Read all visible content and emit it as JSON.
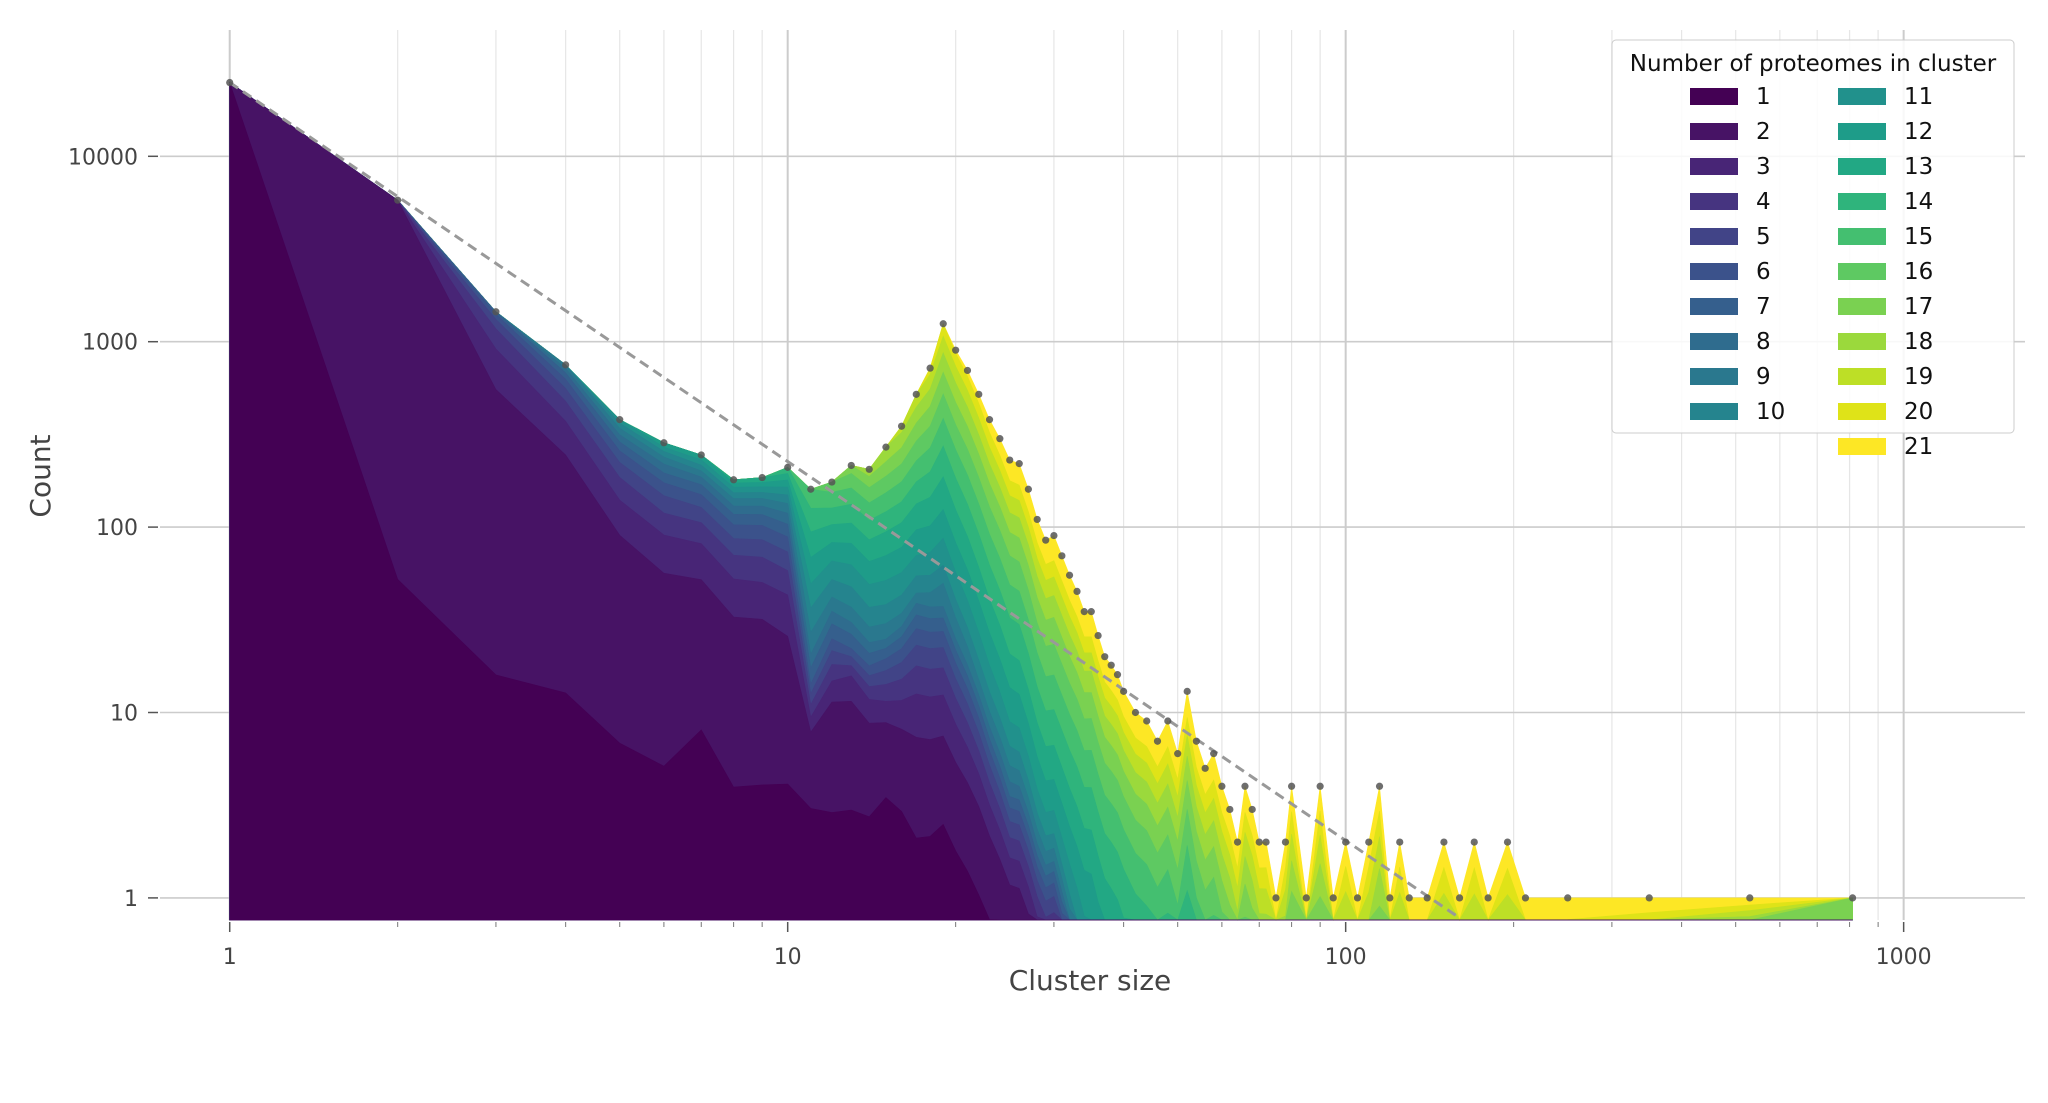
{
  "chart_data": {
    "type": "area",
    "xscale": "log",
    "yscale": "log",
    "xlabel": "Cluster size",
    "ylabel": "Count",
    "xlim": [
      0.75,
      1650
    ],
    "ylim": [
      0.76,
      48000
    ],
    "x_ticks": [
      1,
      10,
      100,
      1000
    ],
    "x_tick_labels": [
      "1",
      "10",
      "100",
      "1000"
    ],
    "y_ticks": [
      1,
      10,
      100,
      1000,
      10000
    ],
    "y_tick_labels": [
      "1",
      "10",
      "100",
      "1000",
      "10000"
    ],
    "grid": true,
    "legend": {
      "title": "Number of proteomes in cluster",
      "position": "top-right",
      "columns": 2
    },
    "series": [
      {
        "name": "1",
        "color": "#440154"
      },
      {
        "name": "2",
        "color": "#471365"
      },
      {
        "name": "3",
        "color": "#482576"
      },
      {
        "name": "4",
        "color": "#463480"
      },
      {
        "name": "5",
        "color": "#414487"
      },
      {
        "name": "6",
        "color": "#3b528b"
      },
      {
        "name": "7",
        "color": "#355f8d"
      },
      {
        "name": "8",
        "color": "#2f6c8e"
      },
      {
        "name": "9",
        "color": "#2a788e"
      },
      {
        "name": "10",
        "color": "#25848e"
      },
      {
        "name": "11",
        "color": "#21918c"
      },
      {
        "name": "12",
        "color": "#1e9c89"
      },
      {
        "name": "13",
        "color": "#22a884"
      },
      {
        "name": "14",
        "color": "#2fb47c"
      },
      {
        "name": "15",
        "color": "#44bf70"
      },
      {
        "name": "16",
        "color": "#5ec962"
      },
      {
        "name": "17",
        "color": "#7ad151"
      },
      {
        "name": "18",
        "color": "#9bd93c"
      },
      {
        "name": "19",
        "color": "#bddf26"
      },
      {
        "name": "20",
        "color": "#dfe318"
      },
      {
        "name": "21",
        "color": "#fde725"
      }
    ],
    "totals": {
      "x": [
        1,
        2,
        3,
        4,
        5,
        6,
        7,
        8,
        9,
        10,
        11,
        12,
        13,
        14,
        15,
        16,
        17,
        18,
        19,
        20,
        21,
        22,
        23,
        24,
        25,
        26,
        27,
        28,
        29,
        30,
        31,
        32,
        33,
        34,
        35,
        36,
        37,
        38,
        39,
        40,
        42,
        44,
        46,
        48,
        50,
        52,
        54,
        56,
        58,
        60,
        62,
        64,
        66,
        68,
        70,
        72,
        75,
        78,
        80,
        85,
        90,
        95,
        100,
        105,
        110,
        115,
        120,
        125,
        130,
        140,
        150,
        160,
        170,
        180,
        195,
        210,
        250,
        350,
        530,
        810
      ],
      "y": [
        25000,
        5800,
        1450,
        750,
        380,
        285,
        245,
        180,
        185,
        210,
        160,
        175,
        215,
        205,
        270,
        350,
        520,
        720,
        1250,
        900,
        700,
        520,
        380,
        300,
        230,
        220,
        160,
        110,
        85,
        90,
        70,
        55,
        45,
        35,
        35,
        26,
        20,
        18,
        16,
        13,
        10,
        9,
        7,
        9,
        6,
        13,
        7,
        5,
        6,
        4,
        3,
        2,
        4,
        3,
        2,
        2,
        1,
        2,
        4,
        1,
        4,
        1,
        2,
        1,
        2,
        4,
        1,
        2,
        1,
        1,
        2,
        1,
        2,
        1,
        2,
        1,
        1,
        1,
        1,
        1
      ]
    },
    "fit_line": {
      "style": "dashed",
      "x": [
        1,
        160
      ],
      "y": [
        25000,
        0.78
      ]
    },
    "stack_profile": {
      "x": [
        1,
        2,
        3,
        4,
        5,
        6,
        7,
        8,
        9,
        10,
        11,
        12,
        13,
        15,
        17,
        19,
        22,
        25,
        30,
        40,
        60,
        100,
        200,
        810
      ],
      "fractions": [
        [
          1.0,
          0,
          0,
          0,
          0,
          0,
          0,
          0,
          0,
          0,
          0,
          0,
          0,
          0,
          0,
          0,
          0,
          0,
          0,
          0,
          0
        ],
        [
          0.009,
          0.991,
          0,
          0,
          0,
          0,
          0,
          0,
          0,
          0,
          0,
          0,
          0,
          0,
          0,
          0,
          0,
          0,
          0,
          0,
          0
        ],
        [
          0.011,
          0.37,
          0.25,
          0.18,
          0.1,
          0.06,
          0.029,
          0,
          0,
          0,
          0,
          0,
          0,
          0,
          0,
          0,
          0,
          0,
          0,
          0,
          0
        ],
        [
          0.017,
          0.31,
          0.17,
          0.14,
          0.11,
          0.09,
          0.07,
          0.05,
          0.043,
          0,
          0,
          0,
          0,
          0,
          0,
          0,
          0,
          0,
          0,
          0,
          0
        ],
        [
          0.018,
          0.22,
          0.13,
          0.12,
          0.1,
          0.09,
          0.08,
          0.07,
          0.07,
          0.06,
          0.042,
          0,
          0,
          0,
          0,
          0,
          0,
          0,
          0,
          0,
          0
        ],
        [
          0.018,
          0.18,
          0.12,
          0.1,
          0.1,
          0.09,
          0.08,
          0.08,
          0.07,
          0.06,
          0.05,
          0.052,
          0,
          0,
          0,
          0,
          0,
          0,
          0,
          0,
          0
        ],
        [
          0.033,
          0.18,
          0.12,
          0.1,
          0.09,
          0.09,
          0.08,
          0.07,
          0.06,
          0.06,
          0.06,
          0.06,
          0,
          0,
          0,
          0,
          0,
          0,
          0,
          0,
          0
        ],
        [
          0.022,
          0.16,
          0.11,
          0.1,
          0.09,
          0.09,
          0.08,
          0.07,
          0.07,
          0.06,
          0.06,
          0.05,
          0.038,
          0,
          0,
          0,
          0,
          0,
          0,
          0,
          0
        ],
        [
          0.022,
          0.15,
          0.1,
          0.1,
          0.09,
          0.09,
          0.08,
          0.07,
          0.07,
          0.06,
          0.06,
          0.05,
          0.058,
          0,
          0,
          0,
          0,
          0,
          0,
          0,
          0
        ],
        [
          0.019,
          0.1,
          0.08,
          0.07,
          0.07,
          0.07,
          0.07,
          0.07,
          0.07,
          0.07,
          0.07,
          0.07,
          0.07,
          0.071,
          0,
          0,
          0,
          0,
          0,
          0,
          0
        ],
        [
          0.019,
          0.03,
          0.01,
          0.01,
          0.01,
          0.01,
          0.02,
          0.02,
          0.04,
          0.06,
          0.08,
          0.12,
          0.16,
          0.2,
          0.211,
          0,
          0,
          0,
          0,
          0,
          0
        ],
        [
          0.017,
          0.05,
          0.02,
          0.02,
          0.02,
          0.02,
          0.03,
          0.03,
          0.04,
          0.06,
          0.08,
          0.1,
          0.12,
          0.14,
          0.16,
          0.123,
          0,
          0,
          0,
          0,
          0
        ],
        [
          0.014,
          0.04,
          0.02,
          0.01,
          0.01,
          0.01,
          0.02,
          0.02,
          0.03,
          0.05,
          0.07,
          0.09,
          0.11,
          0.13,
          0.14,
          0.15,
          0.096,
          0,
          0,
          0,
          0
        ],
        [
          0.013,
          0.02,
          0.01,
          0.01,
          0.01,
          0.01,
          0.01,
          0.01,
          0.02,
          0.03,
          0.05,
          0.07,
          0.09,
          0.1,
          0.12,
          0.13,
          0.14,
          0.167,
          0,
          0,
          0
        ],
        [
          0.004,
          0.01,
          0.01,
          0.01,
          0.01,
          0.01,
          0.01,
          0.01,
          0.01,
          0.02,
          0.03,
          0.05,
          0.07,
          0.08,
          0.1,
          0.12,
          0.14,
          0.15,
          0.146,
          0,
          0
        ],
        [
          0.002,
          0.004,
          0.004,
          0.004,
          0.004,
          0.004,
          0.004,
          0.004,
          0.01,
          0.01,
          0.02,
          0.03,
          0.05,
          0.07,
          0.09,
          0.11,
          0.13,
          0.15,
          0.16,
          0.144,
          0
        ],
        [
          0.002,
          0.004,
          0.003,
          0.003,
          0.003,
          0.003,
          0.003,
          0.003,
          0.005,
          0.008,
          0.015,
          0.025,
          0.04,
          0.06,
          0.08,
          0.1,
          0.12,
          0.13,
          0.14,
          0.15,
          0.106
        ],
        [
          0.002,
          0.003,
          0.002,
          0.002,
          0.002,
          0.002,
          0.002,
          0.003,
          0.004,
          0.006,
          0.01,
          0.02,
          0.03,
          0.05,
          0.07,
          0.09,
          0.1,
          0.11,
          0.12,
          0.13,
          0.22
        ],
        [
          0.002,
          0.003,
          0.002,
          0.002,
          0.002,
          0.002,
          0.002,
          0.002,
          0.003,
          0.004,
          0.008,
          0.015,
          0.025,
          0.04,
          0.06,
          0.08,
          0.1,
          0.11,
          0.12,
          0.13,
          0.26
        ],
        [
          0,
          0,
          0,
          0,
          0,
          0,
          0,
          0,
          0,
          0,
          0.01,
          0.02,
          0.03,
          0.05,
          0.07,
          0.09,
          0.1,
          0.11,
          0.12,
          0.13,
          0.27
        ],
        [
          0,
          0,
          0,
          0,
          0,
          0,
          0,
          0,
          0,
          0,
          0,
          0.01,
          0.02,
          0.04,
          0.06,
          0.08,
          0.1,
          0.12,
          0.14,
          0.15,
          0.28
        ],
        [
          0,
          0,
          0,
          0,
          0,
          0,
          0,
          0,
          0,
          0,
          0,
          0,
          0.01,
          0.02,
          0.04,
          0.07,
          0.1,
          0.13,
          0.17,
          0.2,
          0.26
        ],
        [
          0,
          0,
          0,
          0,
          0,
          0,
          0,
          0,
          0,
          0,
          0,
          0,
          0,
          0,
          0.02,
          0.05,
          0.1,
          0.15,
          0.2,
          0.2,
          0.28
        ],
        [
          0,
          0,
          0,
          0,
          0,
          0,
          0,
          0,
          0,
          0,
          0,
          0,
          0,
          0,
          0,
          0.5,
          0.5,
          0,
          0,
          0,
          0
        ]
      ]
    }
  }
}
